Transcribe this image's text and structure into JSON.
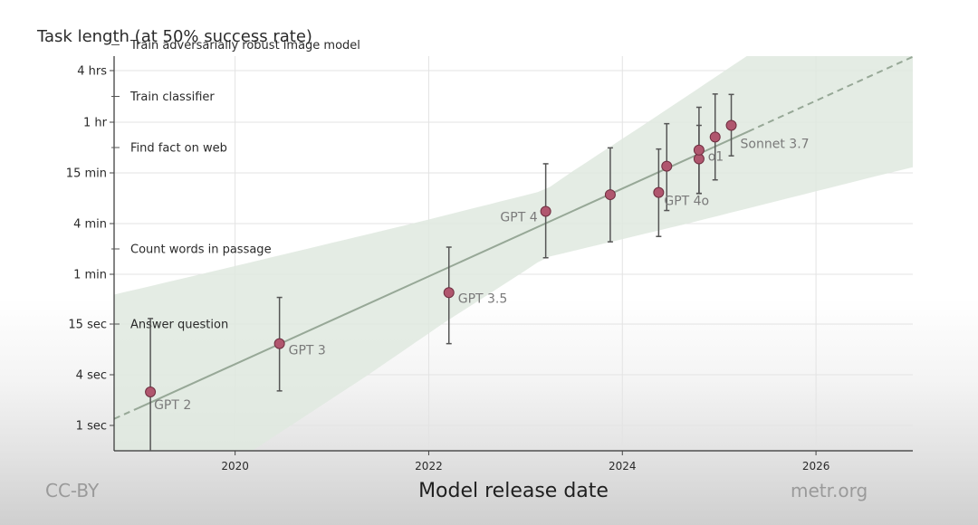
{
  "chart_data": {
    "type": "scatter",
    "title": "Task length (at 50% success rate)",
    "xlabel": "Model release date",
    "ylabel": "",
    "y_scale": "log",
    "x_ticks": [
      "2020",
      "2022",
      "2024",
      "2026"
    ],
    "y_ticks": [
      "1 sec",
      "4 sec",
      "15 sec",
      "1 min",
      "4 min",
      "15 min",
      "1 hr",
      "4 hrs"
    ],
    "task_labels": [
      "Answer question",
      "Count words in passage",
      "Find fact on web",
      "Train classifier",
      "Train adversarially robust image model"
    ],
    "points": [
      {
        "label": "GPT 2",
        "x": "2019-02",
        "y": "2.5 sec"
      },
      {
        "label": "GPT 3",
        "x": "2020-06",
        "y": "9 sec"
      },
      {
        "label": "GPT 3.5",
        "x": "2022-03",
        "y": "36 sec"
      },
      {
        "label": "GPT 4",
        "x": "2023-03",
        "y": "5.5 min"
      },
      {
        "label": "",
        "x": "2023-11",
        "y": "8.5 min"
      },
      {
        "label": "GPT 4o",
        "x": "2024-05",
        "y": "9 min"
      },
      {
        "label": "",
        "x": "2024-06",
        "y": "18 min"
      },
      {
        "label": "",
        "x": "2024-10",
        "y": "22 min"
      },
      {
        "label": "",
        "x": "2024-10",
        "y": "28 min"
      },
      {
        "label": "o1",
        "x": "2024-12",
        "y": "40 min"
      },
      {
        "label": "Sonnet 3.7",
        "x": "2025-02",
        "y": "55 min"
      }
    ],
    "trend": "exponential fit (solid within data range, dashed extrapolation) with shaded confidence band",
    "colors": {
      "point": "#b0566e",
      "trend": "#97a897",
      "band": "#dfe9df",
      "grid": "#e3e3e3"
    }
  },
  "credits": {
    "left": "CC-BY",
    "right": "metr.org"
  }
}
